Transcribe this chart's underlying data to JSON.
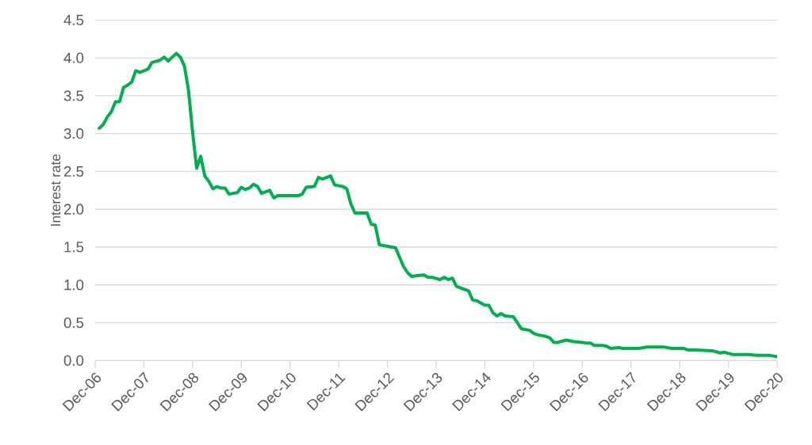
{
  "chart_data": {
    "type": "line",
    "ylabel": "Interest rate",
    "x": [
      "2007-01",
      "2007-02",
      "2007-03",
      "2007-04",
      "2007-05",
      "2007-06",
      "2007-07",
      "2007-08",
      "2007-09",
      "2007-10",
      "2007-11",
      "2008-01",
      "2008-02",
      "2008-04",
      "2008-05",
      "2008-06",
      "2008-08",
      "2008-09",
      "2008-10",
      "2008-11",
      "2008-12",
      "2009-01",
      "2009-02",
      "2009-03",
      "2009-04",
      "2009-05",
      "2009-06",
      "2009-07",
      "2009-08",
      "2009-09",
      "2009-11",
      "2009-12",
      "2010-01",
      "2010-02",
      "2010-03",
      "2010-04",
      "2010-05",
      "2010-07",
      "2010-08",
      "2010-09",
      "2011-02",
      "2011-03",
      "2011-04",
      "2011-06",
      "2011-07",
      "2011-08",
      "2011-10",
      "2011-11",
      "2012-01",
      "2012-02",
      "2012-03",
      "2012-04",
      "2012-07",
      "2012-08",
      "2012-09",
      "2012-10",
      "2012-12",
      "2013-02",
      "2013-04",
      "2013-05",
      "2013-06",
      "2013-07",
      "2013-09",
      "2013-10",
      "2013-11",
      "2014-01",
      "2014-02",
      "2014-03",
      "2014-04",
      "2014-05",
      "2014-08",
      "2014-09",
      "2014-10",
      "2014-12",
      "2015-01",
      "2015-02",
      "2015-03",
      "2015-04",
      "2015-05",
      "2015-07",
      "2015-09",
      "2015-11",
      "2015-12",
      "2016-01",
      "2016-03",
      "2016-04",
      "2016-05",
      "2016-06",
      "2016-08",
      "2016-10",
      "2016-12",
      "2017-01",
      "2017-02",
      "2017-03",
      "2017-05",
      "2017-06",
      "2017-07",
      "2017-09",
      "2017-10",
      "2018-02",
      "2018-04",
      "2018-08",
      "2018-10",
      "2019-01",
      "2019-02",
      "2019-04",
      "2019-08",
      "2019-10",
      "2019-11",
      "2020-01",
      "2020-05",
      "2020-07",
      "2020-10",
      "2020-12"
    ],
    "series": [
      {
        "color": "#00b050",
        "values": [
          3.07,
          3.12,
          3.22,
          3.29,
          3.42,
          3.42,
          3.61,
          3.64,
          3.68,
          3.83,
          3.81,
          3.85,
          3.94,
          3.97,
          4.01,
          3.96,
          4.06,
          4.01,
          3.89,
          3.57,
          3.02,
          2.54,
          2.7,
          2.44,
          2.37,
          2.27,
          2.3,
          2.28,
          2.28,
          2.2,
          2.22,
          2.29,
          2.26,
          2.28,
          2.33,
          2.3,
          2.21,
          2.25,
          2.15,
          2.18,
          2.18,
          2.2,
          2.29,
          2.3,
          2.42,
          2.4,
          2.44,
          2.32,
          2.3,
          2.27,
          2.07,
          1.95,
          1.95,
          1.8,
          1.79,
          1.53,
          1.51,
          1.49,
          1.24,
          1.16,
          1.11,
          1.12,
          1.13,
          1.1,
          1.1,
          1.07,
          1.1,
          1.07,
          1.09,
          0.98,
          0.92,
          0.8,
          0.79,
          0.73,
          0.73,
          0.63,
          0.59,
          0.62,
          0.59,
          0.58,
          0.42,
          0.4,
          0.36,
          0.34,
          0.32,
          0.3,
          0.24,
          0.24,
          0.27,
          0.25,
          0.24,
          0.23,
          0.23,
          0.2,
          0.2,
          0.19,
          0.16,
          0.17,
          0.16,
          0.16,
          0.18,
          0.18,
          0.16,
          0.16,
          0.14,
          0.14,
          0.13,
          0.1,
          0.11,
          0.08,
          0.08,
          0.07,
          0.07,
          0.05
        ]
      }
    ],
    "xlim": [
      "2006-12",
      "2020-12"
    ],
    "xticks": [
      {
        "value": "2006-12",
        "label": "Dec-06"
      },
      {
        "value": "2007-12",
        "label": "Dec-07"
      },
      {
        "value": "2008-12",
        "label": "Dec-08"
      },
      {
        "value": "2009-12",
        "label": "Dec-09"
      },
      {
        "value": "2010-12",
        "label": "Dec-10"
      },
      {
        "value": "2011-12",
        "label": "Dec-11"
      },
      {
        "value": "2012-12",
        "label": "Dec-12"
      },
      {
        "value": "2013-12",
        "label": "Dec-13"
      },
      {
        "value": "2014-12",
        "label": "Dec-14"
      },
      {
        "value": "2015-12",
        "label": "Dec-15"
      },
      {
        "value": "2016-12",
        "label": "Dec-16"
      },
      {
        "value": "2017-12",
        "label": "Dec-17"
      },
      {
        "value": "2018-12",
        "label": "Dec-18"
      },
      {
        "value": "2019-12",
        "label": "Dec-19"
      },
      {
        "value": "2020-12",
        "label": "Dec-20"
      }
    ],
    "ylim": [
      0,
      4.5
    ],
    "yticks": [
      {
        "value": 0,
        "label": "0.0"
      },
      0.5,
      {
        "value": 1,
        "label": "1.0"
      },
      1.5,
      {
        "value": 2,
        "label": "2.0"
      },
      2.5,
      {
        "value": 3,
        "label": "3.0"
      },
      3.5,
      {
        "value": 4,
        "label": "4.0"
      },
      4.5
    ],
    "grid": "y",
    "legend": false,
    "marker": "none",
    "line_style": "solid"
  }
}
